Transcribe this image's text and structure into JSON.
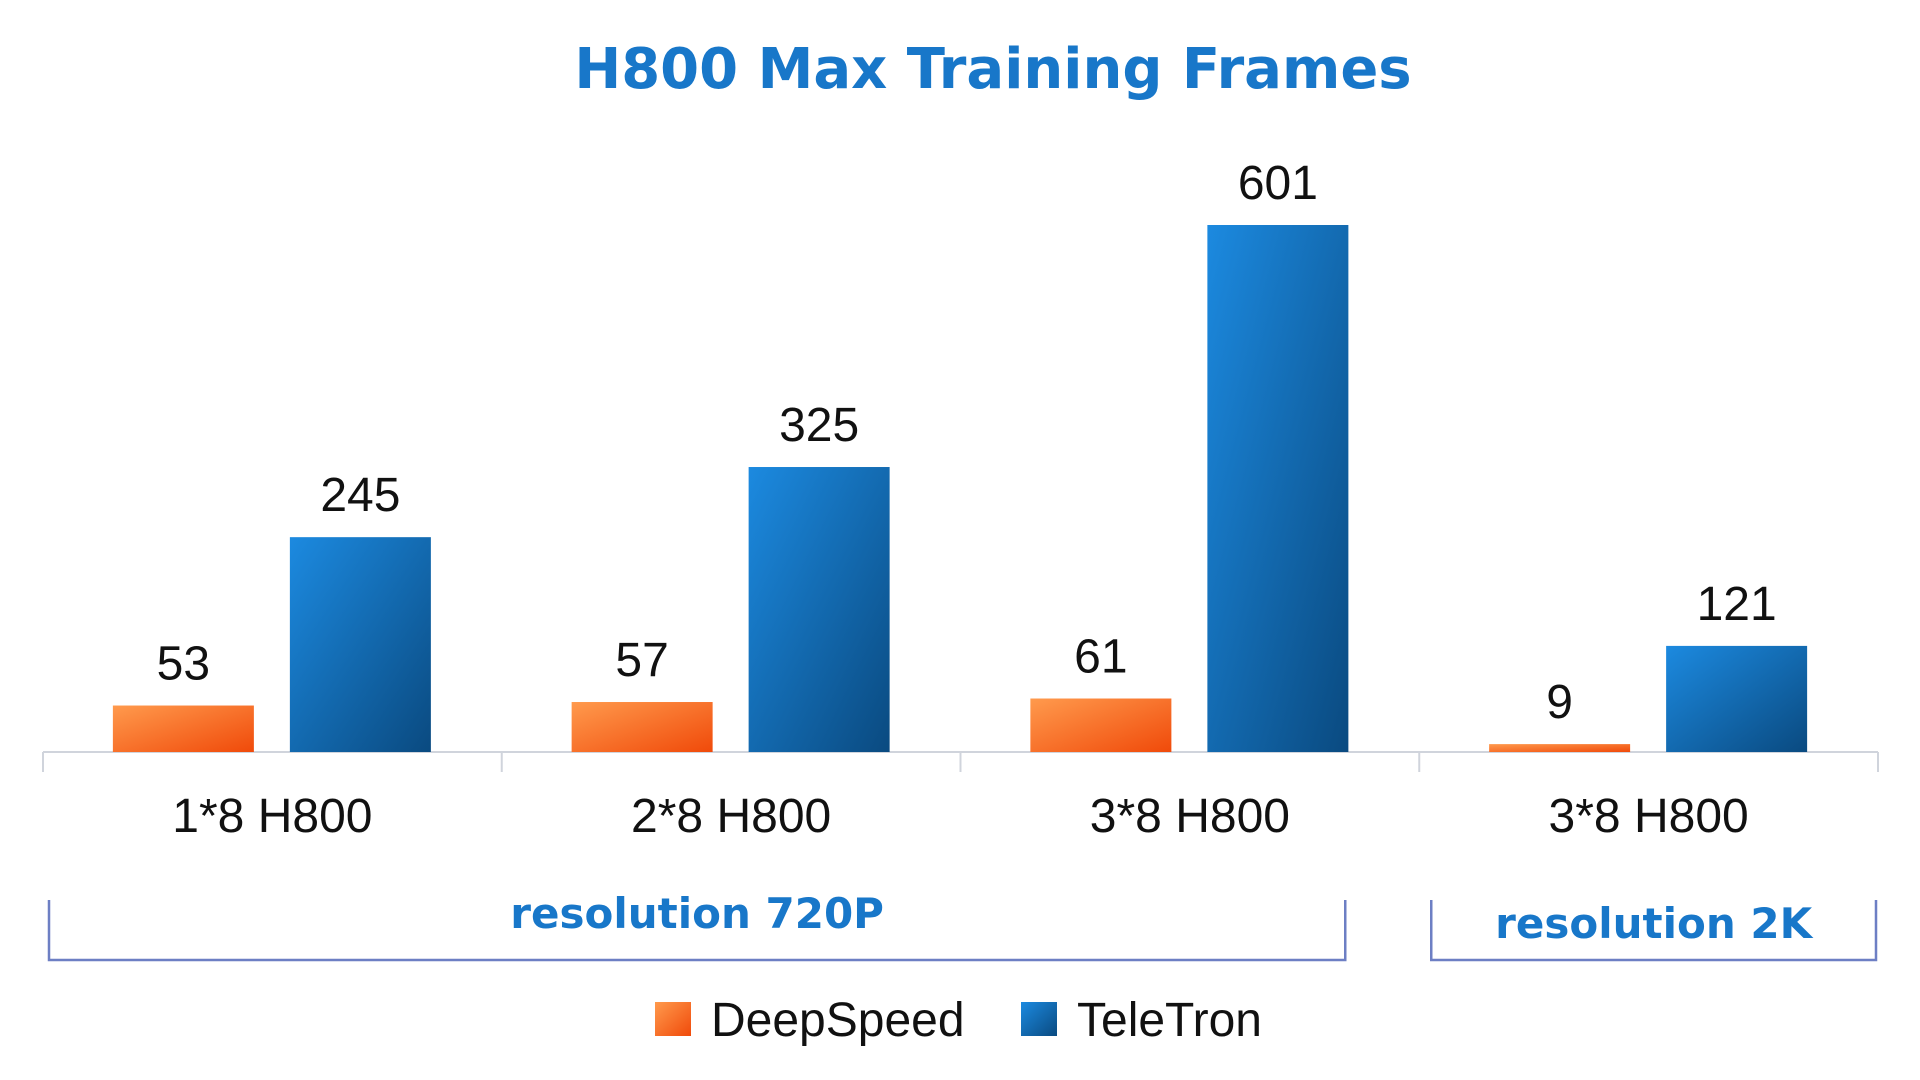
{
  "chart_data": {
    "type": "bar",
    "title": "H800 Max Training Frames",
    "categories": [
      "1*8 H800",
      "2*8 H800",
      "3*8 H800",
      "3*8 H800"
    ],
    "series": [
      {
        "name": "DeepSpeed",
        "values": [
          53,
          57,
          61,
          9
        ],
        "color_light": "#ff9a4d",
        "color_dark": "#f04a0a"
      },
      {
        "name": "TeleTron",
        "values": [
          245,
          325,
          601,
          121
        ],
        "color_light": "#1c8ae0",
        "color_dark": "#0a4a80"
      }
    ],
    "category_groups": [
      {
        "label": "resolution 720P",
        "categories": [
          0,
          1,
          2
        ]
      },
      {
        "label": "resolution 2K",
        "categories": [
          3
        ]
      }
    ],
    "ylim": [
      0,
      601
    ],
    "xlabel": "",
    "ylabel": "",
    "grid": false,
    "legend_position": "bottom-center",
    "title_color": "#1877c9",
    "group_label_color": "#1877c9",
    "bracket_color": "#6d7fc4",
    "axis_color": "#d0d4dc"
  }
}
